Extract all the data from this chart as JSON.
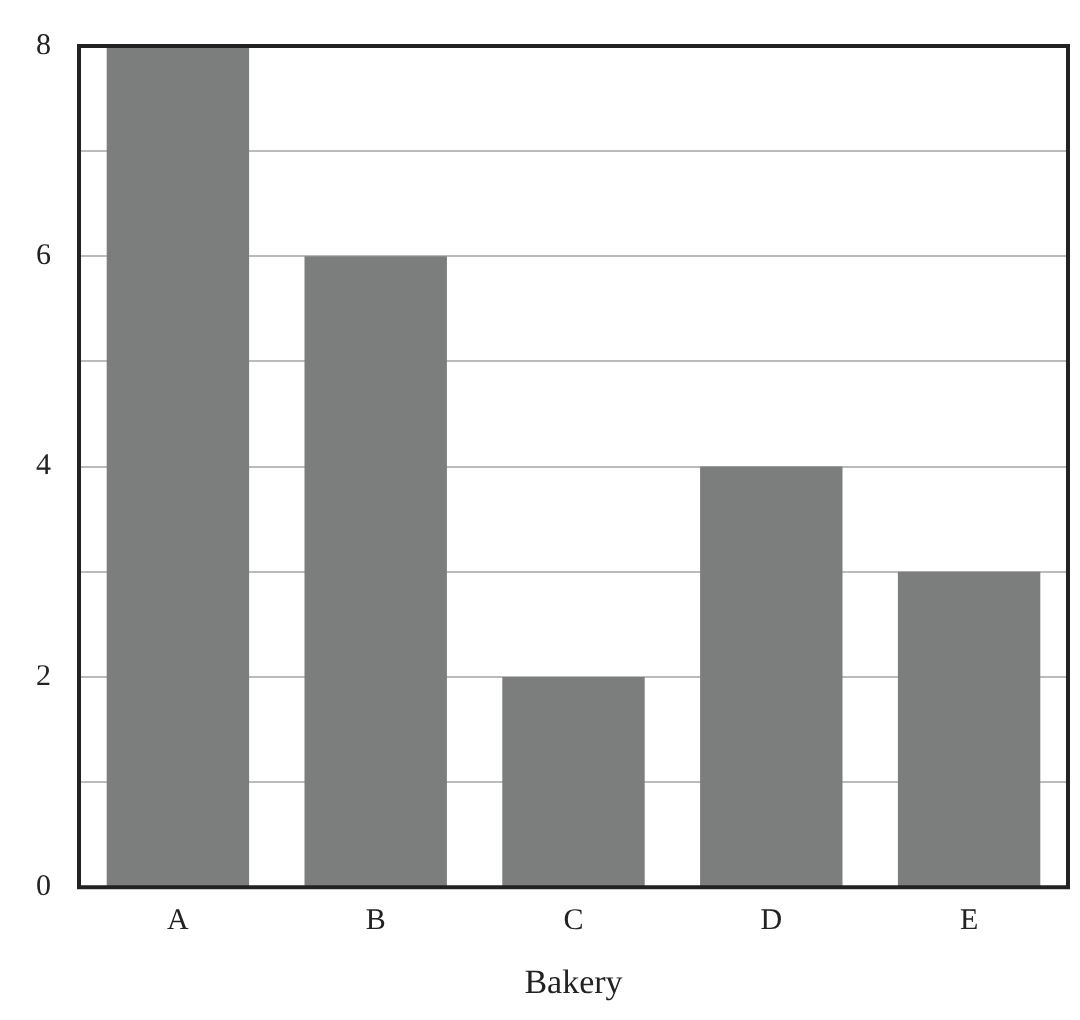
{
  "chart_data": {
    "type": "bar",
    "xlabel": "Bakery",
    "categories": [
      "A",
      "B",
      "C",
      "D",
      "E"
    ],
    "values": [
      8,
      6,
      2,
      4,
      3
    ],
    "color": "#7b7e7d",
    "ylim": [
      0,
      8
    ],
    "yticks": [
      0,
      {
        "value": 1,
        "label": null
      },
      2,
      {
        "value": 3,
        "label": null
      },
      4,
      {
        "value": 5,
        "label": null
      },
      6,
      {
        "value": 7,
        "label": null
      },
      8
    ],
    "grid": "y"
  }
}
